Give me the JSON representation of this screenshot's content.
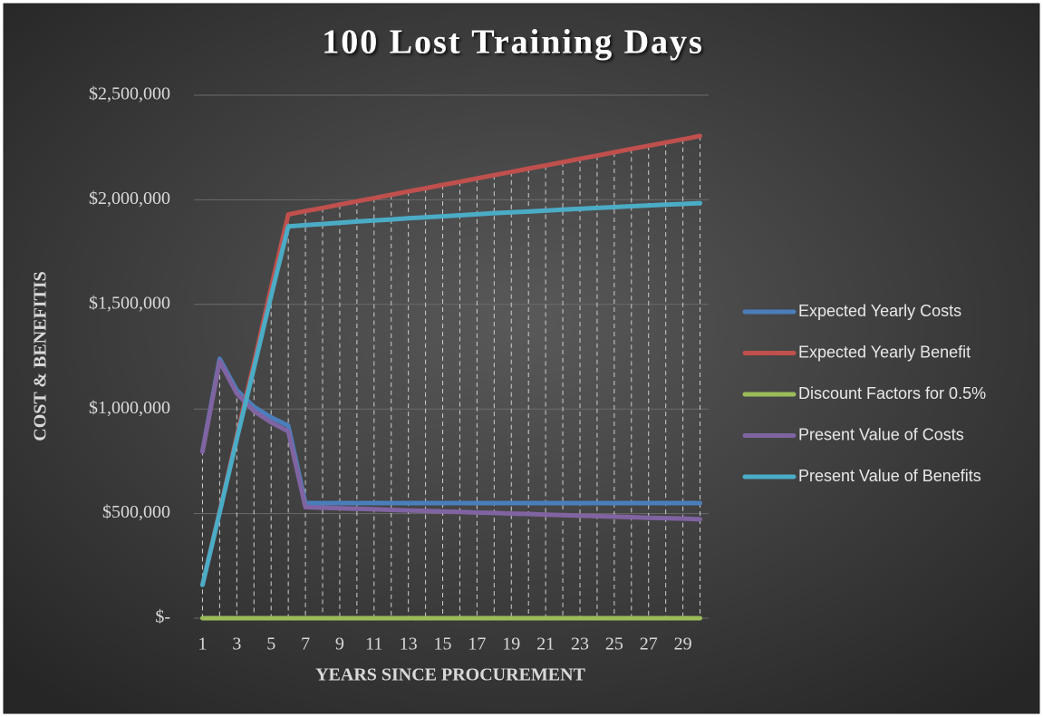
{
  "chart_data": {
    "type": "line",
    "title": "100 Lost Training Days",
    "x_label": "YEARS SINCE PROCUREMENT",
    "y_label": "COST & BENEFITIS",
    "categories": [
      1,
      null,
      3,
      null,
      5,
      null,
      7,
      null,
      9,
      null,
      11,
      null,
      13,
      null,
      15,
      null,
      17,
      null,
      19,
      null,
      21,
      null,
      23,
      null,
      25,
      null,
      27,
      null,
      29,
      null
    ],
    "series": [
      {
        "name": "Expected Yearly Costs",
        "color": "#4a7ebb",
        "values": [
          800000,
          1240000,
          1090000,
          1010000,
          960000,
          920000,
          550000,
          550000,
          550000,
          550000,
          550000,
          550000,
          550000,
          550000,
          550000,
          550000,
          550000,
          550000,
          550000,
          550000,
          550000,
          550000,
          550000,
          550000,
          550000,
          550000,
          550000,
          550000,
          550000,
          550000
        ]
      },
      {
        "name": "Expected Yearly Benefit",
        "color": "#c0504d",
        "values": [
          160000,
          510000,
          870000,
          1220000,
          1580000,
          1930000,
          1946000,
          1961000,
          1977000,
          1993000,
          2008000,
          2024000,
          2040000,
          2055000,
          2071000,
          2086000,
          2102000,
          2118000,
          2133000,
          2149000,
          2164000,
          2180000,
          2196000,
          2211000,
          2227000,
          2243000,
          2258000,
          2274000,
          2289000,
          2305000
        ]
      },
      {
        "name": "Discount Factors for 0.5%",
        "color": "#9bbb59",
        "values": [
          0.995,
          0.99,
          0.9851,
          0.9801,
          0.9752,
          0.9704,
          0.9657,
          0.9609,
          0.9561,
          0.9513,
          0.9465,
          0.9418,
          0.9371,
          0.9324,
          0.9277,
          0.9231,
          0.9185,
          0.9139,
          0.9093,
          0.9048,
          0.9003,
          0.8958,
          0.8913,
          0.8868,
          0.8824,
          0.878,
          0.8736,
          0.8692,
          0.8649,
          0.8605
        ]
      },
      {
        "name": "Present Value of Costs",
        "color": "#8064a2",
        "values": [
          796000,
          1228000,
          1074000,
          990000,
          936000,
          893000,
          531000,
          528000,
          526000,
          523000,
          521000,
          518000,
          515000,
          513000,
          510000,
          508000,
          505000,
          503000,
          500000,
          498000,
          495000,
          493000,
          490000,
          488000,
          485000,
          483000,
          480000,
          478000,
          476000,
          473000
        ]
      },
      {
        "name": "Present Value of Benefits",
        "color": "#4bacc6",
        "values": [
          159000,
          505000,
          857000,
          1196000,
          1541000,
          1873000,
          1879000,
          1884000,
          1890000,
          1896000,
          1901000,
          1906000,
          1912000,
          1916000,
          1921000,
          1926000,
          1931000,
          1936000,
          1940000,
          1944000,
          1948000,
          1953000,
          1957000,
          1961000,
          1965000,
          1969000,
          1973000,
          1977000,
          1980000,
          1984000
        ]
      }
    ],
    "ylim": [
      0,
      2500000
    ],
    "yticks": [
      {
        "value": 0,
        "label": "$-"
      },
      {
        "value": 500000,
        "label": "$500,000"
      },
      {
        "value": 1000000,
        "label": "$1,000,000"
      },
      {
        "value": 1500000,
        "label": "$1,500,000"
      },
      {
        "value": 2000000,
        "label": "$2,000,000"
      },
      {
        "value": 2500000,
        "label": "$2,500,000"
      }
    ],
    "grid": true,
    "legend": "right"
  }
}
